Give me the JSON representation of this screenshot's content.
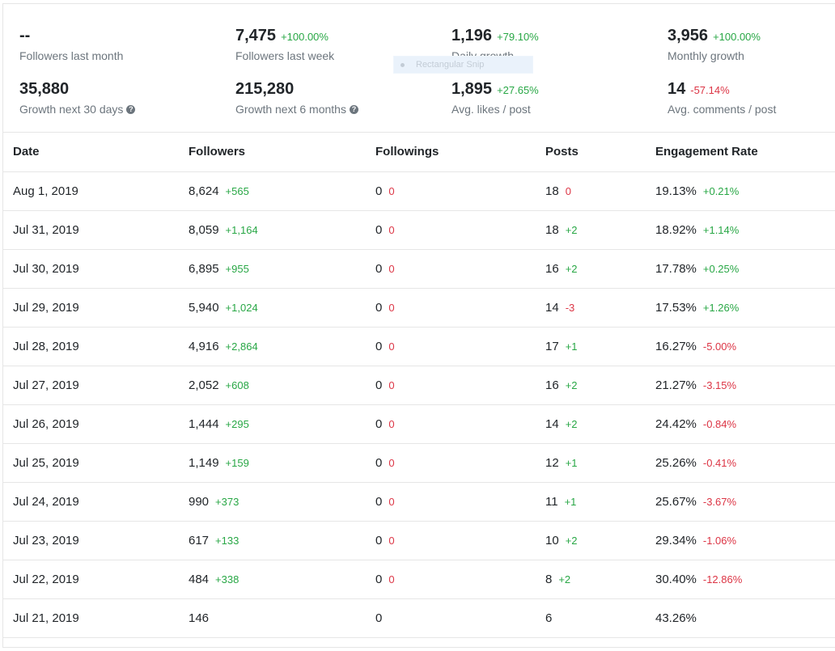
{
  "stats": [
    {
      "value": "--",
      "change": "",
      "change_type": "",
      "label": "Followers last month",
      "help": false
    },
    {
      "value": "7,475",
      "change": "+100.00%",
      "change_type": "pos",
      "label": "Followers last week",
      "help": false
    },
    {
      "value": "1,196",
      "change": "+79.10%",
      "change_type": "pos",
      "label": "Daily growth",
      "help": false
    },
    {
      "value": "3,956",
      "change": "+100.00%",
      "change_type": "pos",
      "label": "Monthly growth",
      "help": false
    },
    {
      "value": "35,880",
      "change": "",
      "change_type": "",
      "label": "Growth next 30 days",
      "help": true
    },
    {
      "value": "215,280",
      "change": "",
      "change_type": "",
      "label": "Growth next 6 months",
      "help": true
    },
    {
      "value": "1,895",
      "change": "+27.65%",
      "change_type": "pos",
      "label": "Avg. likes / post",
      "help": false
    },
    {
      "value": "14",
      "change": "-57.14%",
      "change_type": "neg",
      "label": "Avg. comments / post",
      "help": false
    }
  ],
  "overlay": {
    "label": "Rectangular Snip"
  },
  "help_glyph": "?",
  "table": {
    "headers": [
      "Date",
      "Followers",
      "Followings",
      "Posts",
      "Engagement Rate"
    ],
    "rows": [
      {
        "date": "Aug 1, 2019",
        "followers": "8,624",
        "followers_d": "+565",
        "followers_t": "pos",
        "followings": "0",
        "followings_d": "0",
        "followings_t": "neg",
        "posts": "18",
        "posts_d": "0",
        "posts_t": "neg",
        "er": "19.13%",
        "er_d": "+0.21%",
        "er_t": "pos"
      },
      {
        "date": "Jul 31, 2019",
        "followers": "8,059",
        "followers_d": "+1,164",
        "followers_t": "pos",
        "followings": "0",
        "followings_d": "0",
        "followings_t": "neg",
        "posts": "18",
        "posts_d": "+2",
        "posts_t": "pos",
        "er": "18.92%",
        "er_d": "+1.14%",
        "er_t": "pos"
      },
      {
        "date": "Jul 30, 2019",
        "followers": "6,895",
        "followers_d": "+955",
        "followers_t": "pos",
        "followings": "0",
        "followings_d": "0",
        "followings_t": "neg",
        "posts": "16",
        "posts_d": "+2",
        "posts_t": "pos",
        "er": "17.78%",
        "er_d": "+0.25%",
        "er_t": "pos"
      },
      {
        "date": "Jul 29, 2019",
        "followers": "5,940",
        "followers_d": "+1,024",
        "followers_t": "pos",
        "followings": "0",
        "followings_d": "0",
        "followings_t": "neg",
        "posts": "14",
        "posts_d": "-3",
        "posts_t": "neg",
        "er": "17.53%",
        "er_d": "+1.26%",
        "er_t": "pos"
      },
      {
        "date": "Jul 28, 2019",
        "followers": "4,916",
        "followers_d": "+2,864",
        "followers_t": "pos",
        "followings": "0",
        "followings_d": "0",
        "followings_t": "neg",
        "posts": "17",
        "posts_d": "+1",
        "posts_t": "pos",
        "er": "16.27%",
        "er_d": "-5.00%",
        "er_t": "neg"
      },
      {
        "date": "Jul 27, 2019",
        "followers": "2,052",
        "followers_d": "+608",
        "followers_t": "pos",
        "followings": "0",
        "followings_d": "0",
        "followings_t": "neg",
        "posts": "16",
        "posts_d": "+2",
        "posts_t": "pos",
        "er": "21.27%",
        "er_d": "-3.15%",
        "er_t": "neg"
      },
      {
        "date": "Jul 26, 2019",
        "followers": "1,444",
        "followers_d": "+295",
        "followers_t": "pos",
        "followings": "0",
        "followings_d": "0",
        "followings_t": "neg",
        "posts": "14",
        "posts_d": "+2",
        "posts_t": "pos",
        "er": "24.42%",
        "er_d": "-0.84%",
        "er_t": "neg"
      },
      {
        "date": "Jul 25, 2019",
        "followers": "1,149",
        "followers_d": "+159",
        "followers_t": "pos",
        "followings": "0",
        "followings_d": "0",
        "followings_t": "neg",
        "posts": "12",
        "posts_d": "+1",
        "posts_t": "pos",
        "er": "25.26%",
        "er_d": "-0.41%",
        "er_t": "neg"
      },
      {
        "date": "Jul 24, 2019",
        "followers": "990",
        "followers_d": "+373",
        "followers_t": "pos",
        "followings": "0",
        "followings_d": "0",
        "followings_t": "neg",
        "posts": "11",
        "posts_d": "+1",
        "posts_t": "pos",
        "er": "25.67%",
        "er_d": "-3.67%",
        "er_t": "neg"
      },
      {
        "date": "Jul 23, 2019",
        "followers": "617",
        "followers_d": "+133",
        "followers_t": "pos",
        "followings": "0",
        "followings_d": "0",
        "followings_t": "neg",
        "posts": "10",
        "posts_d": "+2",
        "posts_t": "pos",
        "er": "29.34%",
        "er_d": "-1.06%",
        "er_t": "neg"
      },
      {
        "date": "Jul 22, 2019",
        "followers": "484",
        "followers_d": "+338",
        "followers_t": "pos",
        "followings": "0",
        "followings_d": "0",
        "followings_t": "neg",
        "posts": "8",
        "posts_d": "+2",
        "posts_t": "pos",
        "er": "30.40%",
        "er_d": "-12.86%",
        "er_t": "neg"
      },
      {
        "date": "Jul 21, 2019",
        "followers": "146",
        "followers_d": "",
        "followers_t": "",
        "followings": "0",
        "followings_d": "",
        "followings_t": "",
        "posts": "6",
        "posts_d": "",
        "posts_t": "",
        "er": "43.26%",
        "er_d": "",
        "er_t": ""
      }
    ]
  },
  "colors": {
    "positive": "#28a745",
    "negative": "#dc3545",
    "muted": "#6c757d",
    "border": "#e6e6e6"
  }
}
